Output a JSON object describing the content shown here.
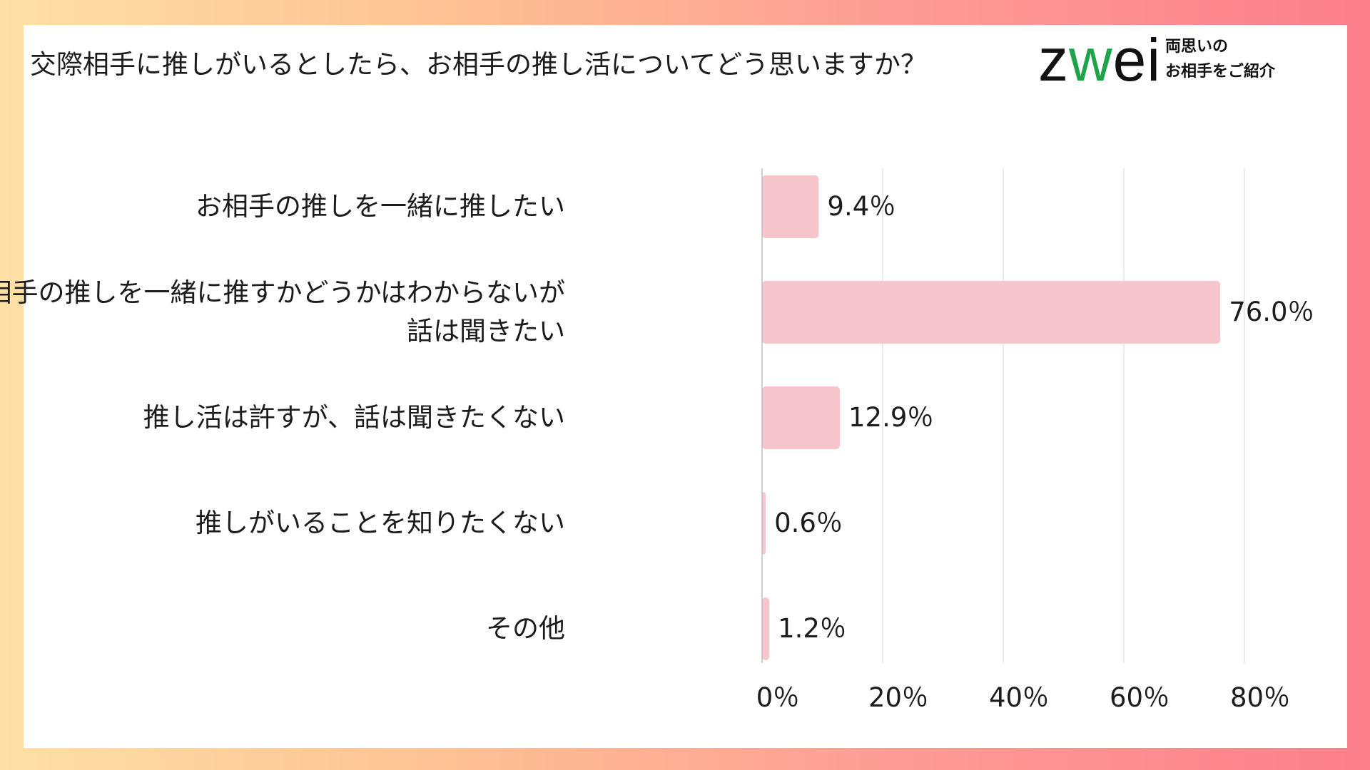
{
  "title": "交際相手に推しがいるとしたら、お相手の推し活についてどう思いますか？",
  "logo": {
    "word": "zwei",
    "tagline_line1": "両思いの",
    "tagline_line2": "お相手をご紹介"
  },
  "colors": {
    "bar": "#f7c6cc",
    "grid": "#e3e3e3",
    "axis": "#bdbdbd",
    "text": "#1c1c1c",
    "logo_accent": "#1fa34a"
  },
  "chart_data": {
    "type": "bar",
    "orientation": "horizontal",
    "categories": [
      "お相手の推しを一緒に推したい",
      "お相手の推しを一緒に推すかどうかはわからないが\n話は聞きたい",
      "推し活は許すが、話は聞きたくない",
      "推しがいることを知りたくない",
      "その他"
    ],
    "values": [
      9.4,
      76.0,
      12.9,
      0.6,
      1.2
    ],
    "value_labels": [
      "9.4％",
      "76.0％",
      "12.9％",
      "0.6％",
      "1.2％"
    ],
    "xlim": [
      0,
      80
    ],
    "x_ticks": [
      0,
      20,
      40,
      60,
      80
    ],
    "x_tick_labels": [
      "0％",
      "20％",
      "40％",
      "60％",
      "80％"
    ],
    "grid": true,
    "legend": "none",
    "unit": "％"
  }
}
